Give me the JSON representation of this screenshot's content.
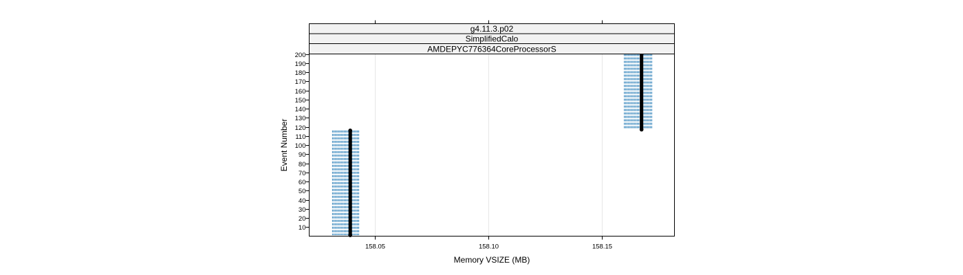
{
  "strips": [
    "g4.11.3.p02",
    "SimplifiedCalo",
    "AMDEPYC776364CoreProcessorS"
  ],
  "chart_data": {
    "type": "scatter",
    "title": "",
    "xlabel": "Memory VSIZE (MB)",
    "ylabel": "Event Number",
    "xlim": [
      158.021,
      158.182
    ],
    "ylim": [
      0,
      200
    ],
    "xticks": [
      158.05,
      158.1,
      158.15
    ],
    "xtick_labels": [
      "158.05",
      "158.10",
      "158.15"
    ],
    "yticks": [
      10,
      20,
      30,
      40,
      50,
      60,
      70,
      80,
      90,
      100,
      110,
      120,
      130,
      140,
      150,
      160,
      170,
      180,
      190,
      200
    ],
    "grid": true,
    "series": [
      {
        "color": "#000000",
        "marker": "filled-circle",
        "segments": [
          {
            "x": 158.0391,
            "y_start": 1,
            "y_end": 116
          },
          {
            "x": 158.1675,
            "y_start": 117,
            "y_end": 200
          }
        ]
      }
    ],
    "error_bands": [
      {
        "color": "#1f78b4",
        "style": "dashed",
        "x_min": 158.0313,
        "x_max": 158.0431,
        "y_start": 1,
        "y_end": 116
      },
      {
        "color": "#1f78b4",
        "style": "dashed",
        "x_min": 158.1599,
        "x_max": 158.1721,
        "y_start": 117,
        "y_end": 200
      }
    ],
    "colors": {
      "points": "#000000",
      "band": "#1f78b4",
      "grid": "#e6e6e6",
      "strip_bg": "#f2f2f2"
    }
  }
}
